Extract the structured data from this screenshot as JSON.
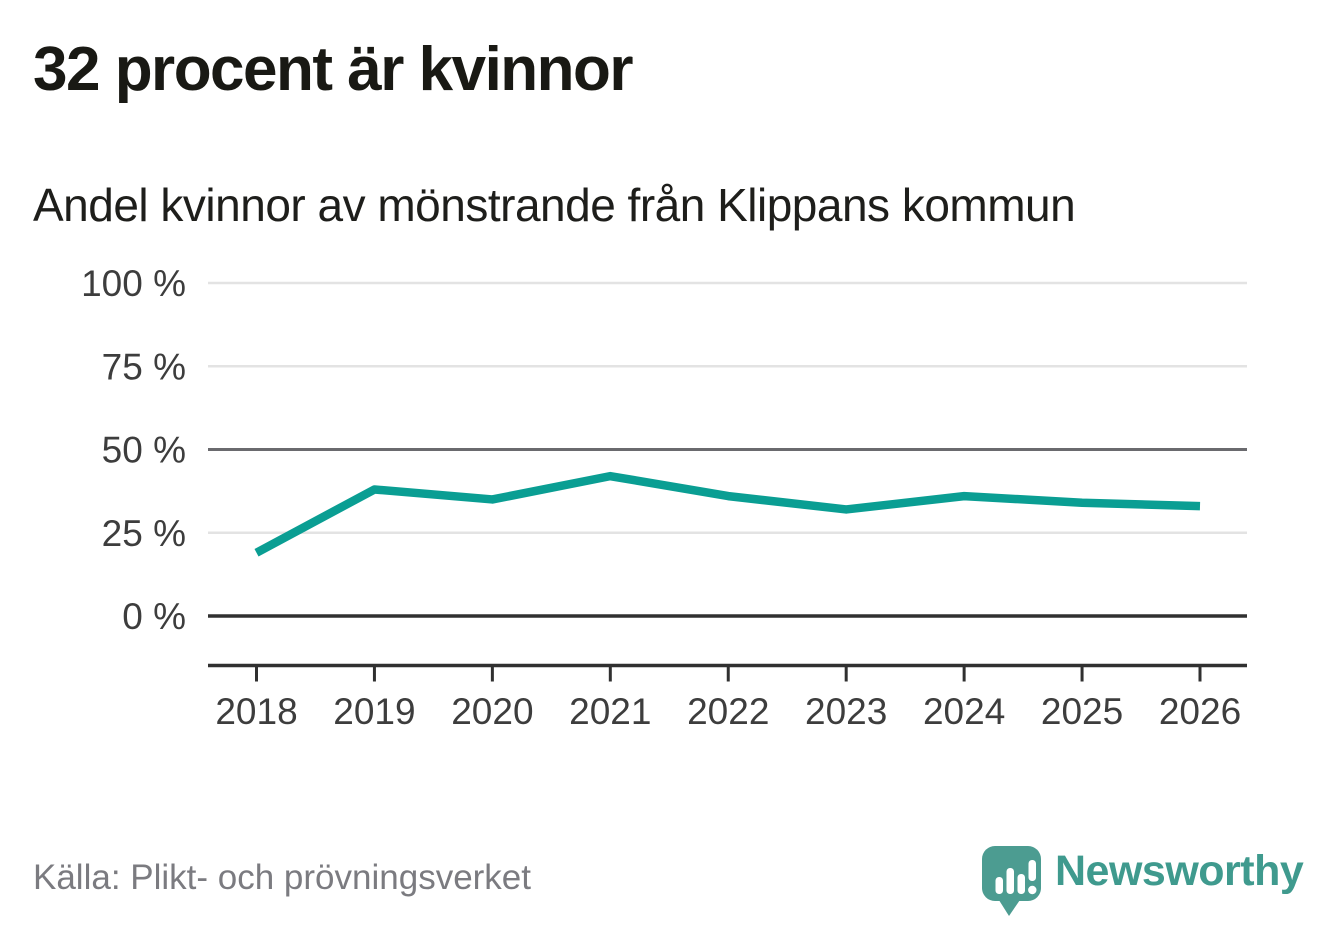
{
  "header": {
    "title": "32 procent är kvinnor",
    "subtitle": "Andel kvinnor av mönstrande från Klippans kommun"
  },
  "chart_data": {
    "type": "line",
    "title": "32 procent är kvinnor",
    "subtitle": "Andel kvinnor av mönstrande från Klippans kommun",
    "categories": [
      "2018",
      "2019",
      "2020",
      "2021",
      "2022",
      "2023",
      "2024",
      "2025",
      "2026"
    ],
    "values": [
      19,
      38,
      35,
      42,
      36,
      32,
      36,
      34,
      33
    ],
    "unit": "%",
    "xlabel": "",
    "ylabel": "",
    "ylim": [
      0,
      100
    ],
    "yticks": [
      0,
      25,
      50,
      75,
      100
    ],
    "ytick_labels": [
      "0 %",
      "25 %",
      "50 %",
      "75 %",
      "100 %"
    ],
    "emphasized_gridline": 50,
    "grid": true,
    "legend": "none",
    "line_color": "#0a9e93",
    "source": "Källa: Plikt- och prövningsverket"
  },
  "footer": {
    "source": "Källa: Plikt- och prövningsverket",
    "brand": "Newsworthy"
  },
  "colors": {
    "accent": "#0a9e93",
    "logo": "#4c9c91",
    "logo_text": "#3f9a8e",
    "title_text": "#191914",
    "subtitle_text": "#1e1e1b",
    "axis": "#303030",
    "grid_emphasis": "#6a6a6e",
    "grid_light": "#e3e3e3",
    "tick_label": "#3d3d3d",
    "source_text": "#7b7b80"
  }
}
